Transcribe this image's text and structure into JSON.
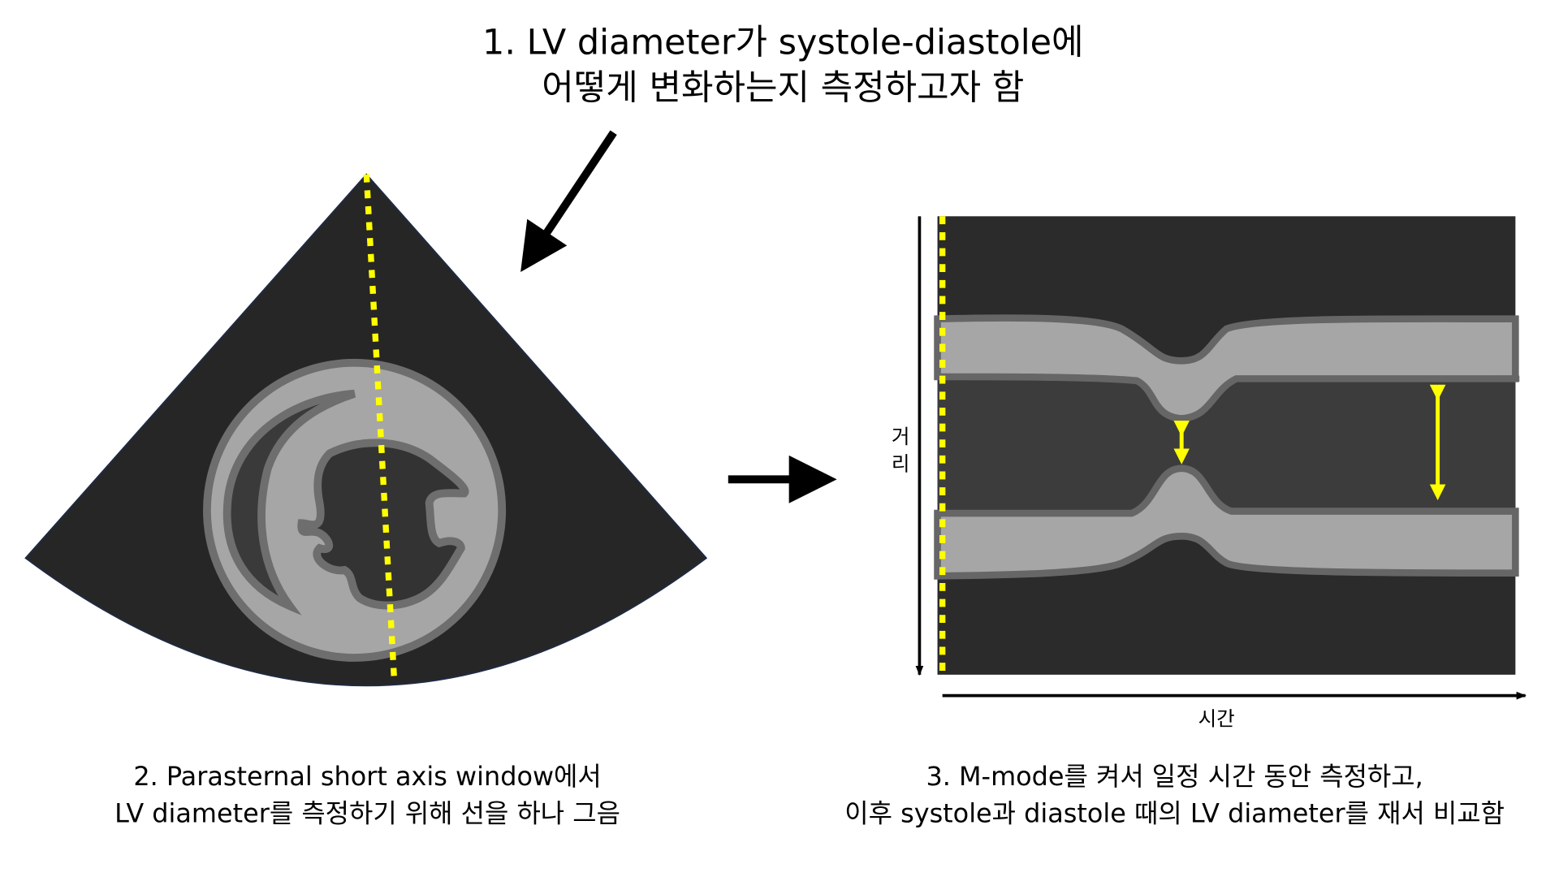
{
  "title": {
    "line1": "1. LV diameter가 systole-diastole에",
    "line2": "어떻게 변화하는지 측정하고자 함"
  },
  "left_caption": {
    "line1": "2. Parasternal short axis window에서",
    "line2": "LV diameter를 측정하기 위해 선을 하나 그음"
  },
  "right_caption": {
    "line1": "3. M-mode를 켜서 일정 시간 동안 측정하고,",
    "line2": "이후 systole과 diastole 때의 LV diameter를 재서 비교함"
  },
  "axes": {
    "y_label_1": "거",
    "y_label_2": "리",
    "x_label": "시간"
  },
  "colors": {
    "background_dark": "#2b2b2b",
    "tissue": "#a6a6a6",
    "tissue_edge": "#666666",
    "cavity": "#3c3c3c",
    "measure_line": "#ffff00"
  }
}
